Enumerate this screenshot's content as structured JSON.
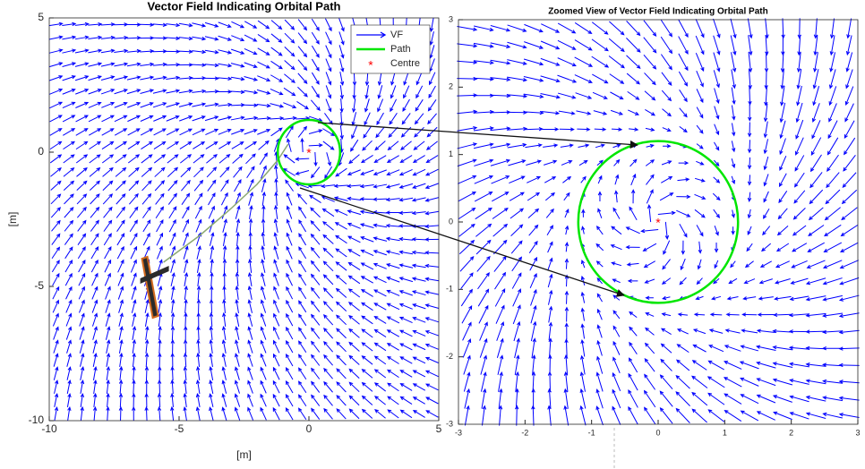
{
  "chart_data": [
    {
      "type": "vector_field",
      "title": "Vector Field Indicating Orbital Path",
      "xlabel": "[m]",
      "ylabel": "[m]",
      "xlim": [
        -10,
        5
      ],
      "ylim": [
        -10,
        5
      ],
      "xticks": [
        -10,
        -5,
        0,
        5
      ],
      "yticks": [
        -10,
        -5,
        0,
        5
      ],
      "legend": "upper right",
      "series": [
        {
          "name": "VF",
          "color": "#0000ff"
        },
        {
          "name": "Path",
          "color": "#00e600",
          "centre": [
            0,
            0
          ],
          "radius": 1.2
        },
        {
          "name": "Centre",
          "color": "#ff0000",
          "x": [
            0
          ],
          "y": [
            0
          ]
        }
      ],
      "trajectory": {
        "color": "#8aa870",
        "x": [
          -5.6,
          -4.2,
          -3,
          -2,
          -1.2,
          -0.8
        ],
        "y": [
          -4.1,
          -3.1,
          -2.1,
          -1.2,
          -0.3,
          0.3
        ]
      }
    },
    {
      "type": "vector_field",
      "title": "Zoomed View of Vector Field Indicating Orbital Path",
      "xlim": [
        -3,
        3
      ],
      "ylim": [
        -3,
        3
      ],
      "xticks": [
        -3,
        -2,
        -1,
        0,
        1,
        2,
        3
      ],
      "yticks": [
        -3,
        -2,
        -1,
        0,
        1,
        2,
        3
      ],
      "series": [
        {
          "name": "VF",
          "color": "#0000ff"
        },
        {
          "name": "Path",
          "color": "#00e600",
          "centre": [
            0,
            0
          ],
          "radius": 1.2
        },
        {
          "name": "Centre",
          "color": "#ff0000",
          "x": [
            0
          ],
          "y": [
            0
          ]
        }
      ]
    }
  ]
}
